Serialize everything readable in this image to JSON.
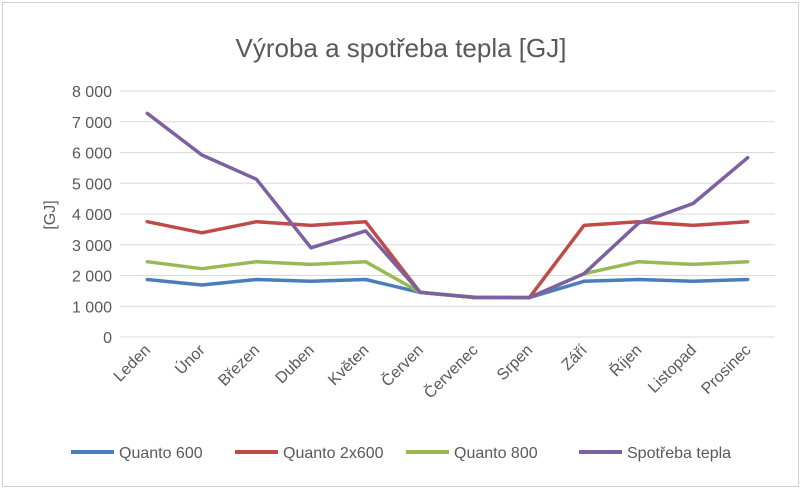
{
  "chart_data": {
    "type": "line",
    "title": "Výroba a spotřeba tepla [GJ]",
    "xlabel": "",
    "ylabel": "[GJ]",
    "ylim": [
      0,
      8000
    ],
    "ytick_values": [
      0,
      1000,
      2000,
      3000,
      4000,
      5000,
      6000,
      7000,
      8000
    ],
    "ytick_labels": [
      "0",
      "1 000",
      "2 000",
      "3 000",
      "4 000",
      "5 000",
      "6 000",
      "7 000",
      "8 000"
    ],
    "grid": true,
    "legend_position": "bottom",
    "categories": [
      "Leden",
      "Únor",
      "Březen",
      "Duben",
      "Květen",
      "Červen",
      "Červenec",
      "Srpen",
      "Září",
      "Říjen",
      "Listopad",
      "Prosinec"
    ],
    "series": [
      {
        "name": "Quanto 600",
        "color": "#4a7ebb",
        "values": [
          1870,
          1690,
          1870,
          1810,
          1870,
          1450,
          1280,
          1280,
          1810,
          1870,
          1810,
          1870
        ]
      },
      {
        "name": "Quanto 2x600",
        "color": "#be4b48",
        "values": [
          3750,
          3390,
          3750,
          3630,
          3750,
          1450,
          1280,
          1280,
          3630,
          3750,
          3630,
          3750
        ]
      },
      {
        "name": "Quanto 800",
        "color": "#98b954",
        "values": [
          2450,
          2220,
          2450,
          2360,
          2450,
          1450,
          1280,
          1280,
          2060,
          2450,
          2360,
          2450
        ]
      },
      {
        "name": "Spotřeba tepla",
        "color": "#7d60a0",
        "values": [
          7270,
          5920,
          5130,
          2900,
          3450,
          1450,
          1290,
          1280,
          2060,
          3700,
          4340,
          5830
        ]
      }
    ]
  }
}
